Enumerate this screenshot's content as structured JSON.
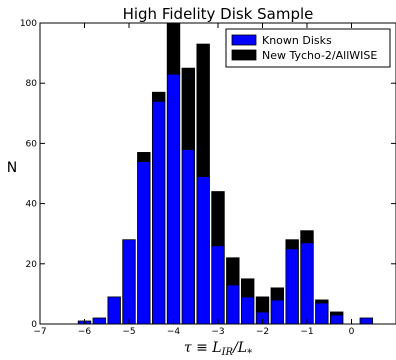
{
  "chart_data": {
    "type": "bar",
    "stacked": true,
    "title": "High Fidelity Disk Sample",
    "xlabel": "τ ≡ L_IR/L_*",
    "ylabel": "N",
    "xlim": [
      -7,
      1
    ],
    "ylim": [
      0,
      100
    ],
    "xticks": [
      -7,
      -6,
      -5,
      -4,
      -3,
      -2,
      -1,
      0
    ],
    "xtick_labels": [
      "−7",
      "−6",
      "−5",
      "−4",
      "−3",
      "−2",
      "−1",
      "0"
    ],
    "yticks": [
      0,
      20,
      40,
      60,
      80,
      100
    ],
    "bin_width": 0.333,
    "legend_position": "top-right",
    "grid": false,
    "x": [
      -6,
      -5.667,
      -5.333,
      -5,
      -4.667,
      -4.333,
      -4,
      -3.667,
      -3.333,
      -3,
      -2.667,
      -2.333,
      -2,
      -1.667,
      -1.333,
      -1,
      -0.667,
      -0.333,
      0,
      0.333
    ],
    "series": [
      {
        "name": "Known Disks",
        "color": "#0000ff",
        "values": [
          1,
          2,
          9,
          28,
          54,
          74,
          83,
          58,
          49,
          26,
          13,
          9,
          4,
          8,
          25,
          27,
          7,
          3,
          0,
          2
        ]
      },
      {
        "name": "New Tycho-2/AllWISE",
        "color": "#000000",
        "values": [
          0,
          0,
          0,
          0,
          3,
          3,
          17,
          27,
          44,
          18,
          9,
          6,
          5,
          4,
          3,
          4,
          1,
          1,
          0,
          0
        ]
      }
    ]
  }
}
